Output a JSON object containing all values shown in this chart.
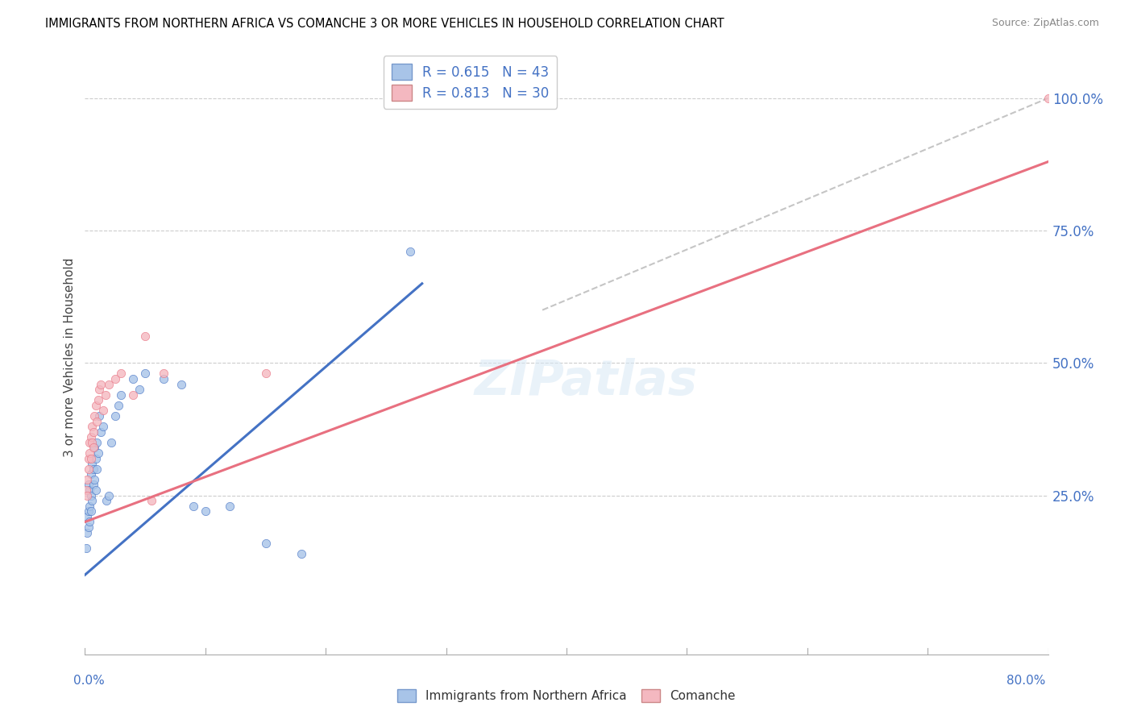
{
  "title": "IMMIGRANTS FROM NORTHERN AFRICA VS COMANCHE 3 OR MORE VEHICLES IN HOUSEHOLD CORRELATION CHART",
  "source": "Source: ZipAtlas.com",
  "ylabel": "3 or more Vehicles in Household",
  "legend_label1": "Immigrants from Northern Africa",
  "legend_label2": "Comanche",
  "color_blue": "#a8c4e8",
  "color_pink": "#f4b8c0",
  "color_blue_line": "#4472c4",
  "color_pink_line": "#e87080",
  "color_dashed": "#bbbbbb",
  "blue_x": [
    0.001,
    0.002,
    0.002,
    0.003,
    0.003,
    0.003,
    0.004,
    0.004,
    0.004,
    0.005,
    0.005,
    0.005,
    0.006,
    0.006,
    0.007,
    0.007,
    0.008,
    0.008,
    0.009,
    0.009,
    0.01,
    0.01,
    0.011,
    0.012,
    0.013,
    0.015,
    0.018,
    0.02,
    0.022,
    0.025,
    0.028,
    0.03,
    0.04,
    0.045,
    0.05,
    0.065,
    0.08,
    0.09,
    0.1,
    0.12,
    0.15,
    0.18,
    0.27
  ],
  "blue_y": [
    0.15,
    0.21,
    0.18,
    0.27,
    0.22,
    0.19,
    0.26,
    0.23,
    0.2,
    0.29,
    0.25,
    0.22,
    0.31,
    0.24,
    0.3,
    0.27,
    0.34,
    0.28,
    0.32,
    0.26,
    0.35,
    0.3,
    0.33,
    0.4,
    0.37,
    0.38,
    0.24,
    0.25,
    0.35,
    0.4,
    0.42,
    0.44,
    0.47,
    0.45,
    0.48,
    0.47,
    0.46,
    0.23,
    0.22,
    0.23,
    0.16,
    0.14,
    0.71
  ],
  "pink_x": [
    0.001,
    0.002,
    0.002,
    0.003,
    0.003,
    0.004,
    0.004,
    0.005,
    0.005,
    0.006,
    0.006,
    0.007,
    0.007,
    0.008,
    0.009,
    0.01,
    0.011,
    0.012,
    0.013,
    0.015,
    0.017,
    0.02,
    0.025,
    0.03,
    0.04,
    0.05,
    0.055,
    0.065,
    0.15,
    0.8
  ],
  "pink_y": [
    0.26,
    0.28,
    0.25,
    0.32,
    0.3,
    0.35,
    0.33,
    0.36,
    0.32,
    0.38,
    0.35,
    0.37,
    0.34,
    0.4,
    0.42,
    0.39,
    0.43,
    0.45,
    0.46,
    0.41,
    0.44,
    0.46,
    0.47,
    0.48,
    0.44,
    0.55,
    0.24,
    0.48,
    0.48,
    1.0
  ],
  "blue_line_x": [
    0.0,
    0.28
  ],
  "blue_line_y": [
    0.1,
    0.65
  ],
  "pink_line_x": [
    0.0,
    0.8
  ],
  "pink_line_y": [
    0.2,
    0.88
  ],
  "dashed_line_x": [
    0.38,
    0.8
  ],
  "dashed_line_y": [
    0.6,
    1.0
  ],
  "xlim": [
    0.0,
    0.8
  ],
  "ylim": [
    -0.05,
    1.07
  ],
  "yticks": [
    0.25,
    0.5,
    0.75,
    1.0
  ],
  "ytick_labels": [
    "25.0%",
    "50.0%",
    "75.0%",
    "100.0%"
  ],
  "hlines": [
    0.25,
    0.5,
    0.75,
    1.0
  ],
  "top_hline": 1.0
}
